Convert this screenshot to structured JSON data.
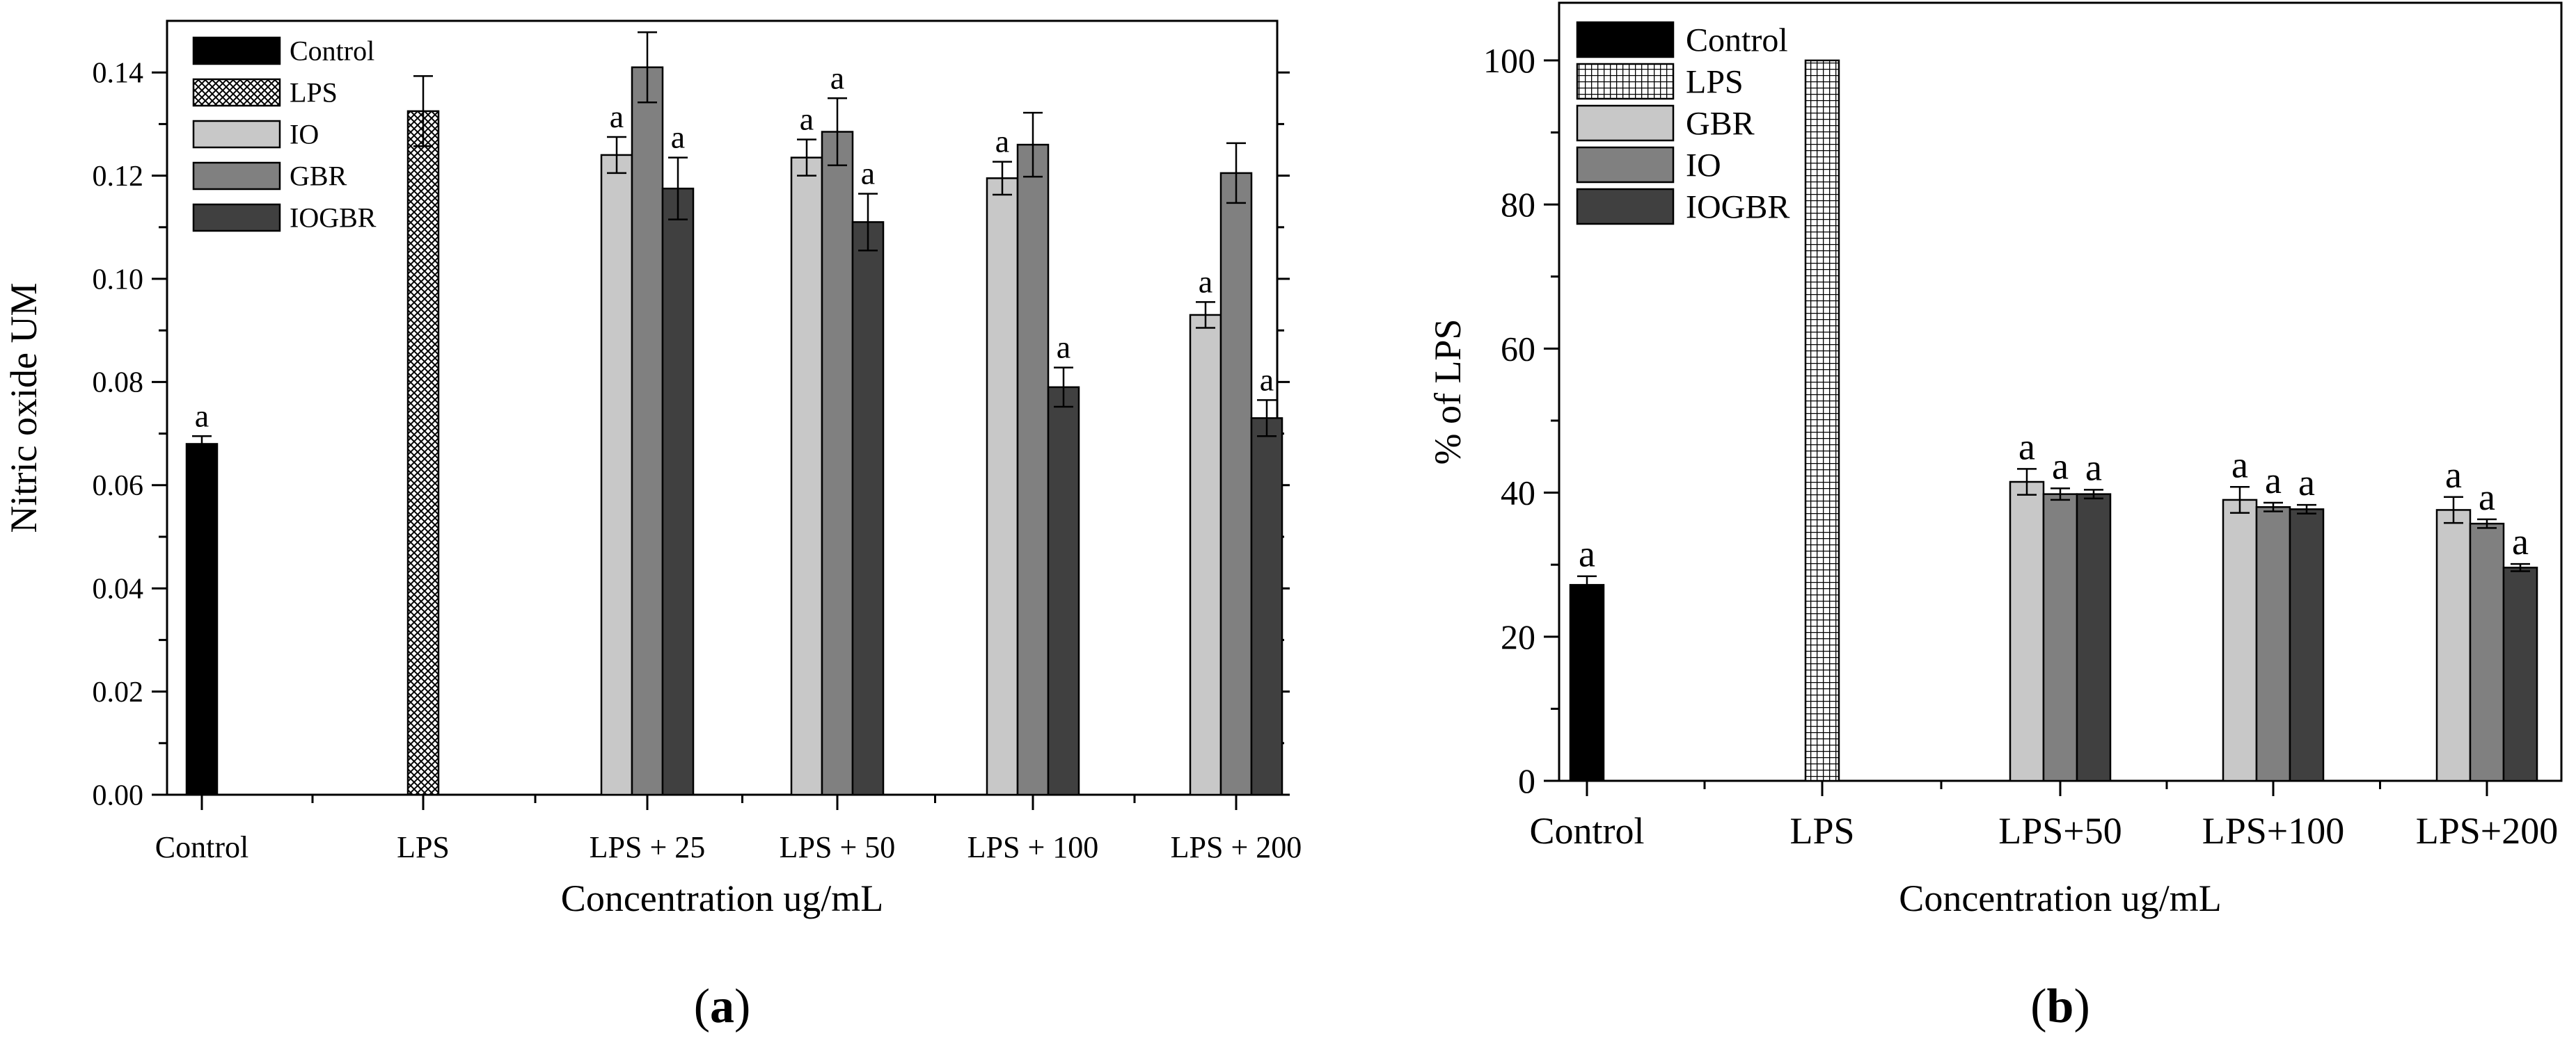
{
  "chart_data": [
    {
      "type": "bar",
      "panel_label": "a",
      "xlabel": "Concentration ug/mL",
      "ylabel": "Nitric oxide UM",
      "ylim": [
        0,
        0.15
      ],
      "yticks": [
        0.0,
        0.02,
        0.04,
        0.06,
        0.08,
        0.1,
        0.12,
        0.14
      ],
      "ytick_decimals": 2,
      "categories": [
        "Control",
        "LPS",
        "LPS + 25",
        "LPS + 50",
        "LPS + 100",
        "LPS + 200"
      ],
      "legend_position": "top-left",
      "legend": [
        {
          "name": "Control",
          "pattern": "solid-black"
        },
        {
          "name": "LPS",
          "pattern": "crosshatch"
        },
        {
          "name": "IO",
          "pattern": "light-gray"
        },
        {
          "name": "GBR",
          "pattern": "mid-gray"
        },
        {
          "name": "IOGBR",
          "pattern": "dark-gray"
        }
      ],
      "bars": [
        {
          "category": "Control",
          "series": "Control",
          "value": 0.068,
          "error": 0.0015,
          "label": "a"
        },
        {
          "category": "LPS",
          "series": "LPS",
          "value": 0.1325,
          "error": 0.0068,
          "label": ""
        },
        {
          "category": "LPS + 25",
          "series": "IO",
          "value": 0.124,
          "error": 0.0035,
          "label": "a"
        },
        {
          "category": "LPS + 25",
          "series": "GBR",
          "value": 0.141,
          "error": 0.0068,
          "label": ""
        },
        {
          "category": "LPS + 25",
          "series": "IOGBR",
          "value": 0.1175,
          "error": 0.006,
          "label": "a"
        },
        {
          "category": "LPS + 50",
          "series": "IO",
          "value": 0.1235,
          "error": 0.0035,
          "label": "a"
        },
        {
          "category": "LPS + 50",
          "series": "GBR",
          "value": 0.1285,
          "error": 0.0065,
          "label": "a"
        },
        {
          "category": "LPS + 50",
          "series": "IOGBR",
          "value": 0.111,
          "error": 0.0055,
          "label": "a"
        },
        {
          "category": "LPS + 100",
          "series": "IO",
          "value": 0.1195,
          "error": 0.0032,
          "label": "a"
        },
        {
          "category": "LPS + 100",
          "series": "GBR",
          "value": 0.126,
          "error": 0.0062,
          "label": ""
        },
        {
          "category": "LPS + 100",
          "series": "IOGBR",
          "value": 0.079,
          "error": 0.0038,
          "label": "a"
        },
        {
          "category": "LPS + 200",
          "series": "IO",
          "value": 0.093,
          "error": 0.0025,
          "label": "a"
        },
        {
          "category": "LPS + 200",
          "series": "GBR",
          "value": 0.1205,
          "error": 0.0058,
          "label": ""
        },
        {
          "category": "LPS + 200",
          "series": "IOGBR",
          "value": 0.073,
          "error": 0.0035,
          "label": "a"
        }
      ]
    },
    {
      "type": "bar",
      "panel_label": "b",
      "xlabel": "Concentration ug/mL",
      "ylabel": "% of LPS",
      "ylim": [
        0,
        108
      ],
      "yticks": [
        0,
        20,
        40,
        60,
        80,
        100
      ],
      "ytick_decimals": 0,
      "categories": [
        "Control",
        "LPS",
        "LPS+50",
        "LPS+100",
        "LPS+200"
      ],
      "legend_position": "top-left",
      "legend": [
        {
          "name": "Control",
          "pattern": "solid-black"
        },
        {
          "name": "LPS",
          "pattern": "grid"
        },
        {
          "name": "GBR",
          "pattern": "light-gray"
        },
        {
          "name": "IO",
          "pattern": "mid-gray"
        },
        {
          "name": "IOGBR",
          "pattern": "dark-gray"
        }
      ],
      "bars": [
        {
          "category": "Control",
          "series": "Control",
          "value": 27.2,
          "error": 1.2,
          "label": "a"
        },
        {
          "category": "LPS",
          "series": "LPS",
          "value": 100,
          "error": 0,
          "label": ""
        },
        {
          "category": "LPS+50",
          "series": "GBR",
          "value": 41.5,
          "error": 1.8,
          "label": "a"
        },
        {
          "category": "LPS+50",
          "series": "IO",
          "value": 39.8,
          "error": 0.8,
          "label": "a"
        },
        {
          "category": "LPS+50",
          "series": "IOGBR",
          "value": 39.8,
          "error": 0.6,
          "label": "a"
        },
        {
          "category": "LPS+100",
          "series": "GBR",
          "value": 39.0,
          "error": 1.8,
          "label": "a"
        },
        {
          "category": "LPS+100",
          "series": "IO",
          "value": 38.0,
          "error": 0.6,
          "label": "a"
        },
        {
          "category": "LPS+100",
          "series": "IOGBR",
          "value": 37.7,
          "error": 0.6,
          "label": "a"
        },
        {
          "category": "LPS+200",
          "series": "GBR",
          "value": 37.6,
          "error": 1.8,
          "label": "a"
        },
        {
          "category": "LPS+200",
          "series": "IO",
          "value": 35.7,
          "error": 0.6,
          "label": "a"
        },
        {
          "category": "LPS+200",
          "series": "IOGBR",
          "value": 29.6,
          "error": 0.5,
          "label": "a"
        }
      ]
    }
  ]
}
